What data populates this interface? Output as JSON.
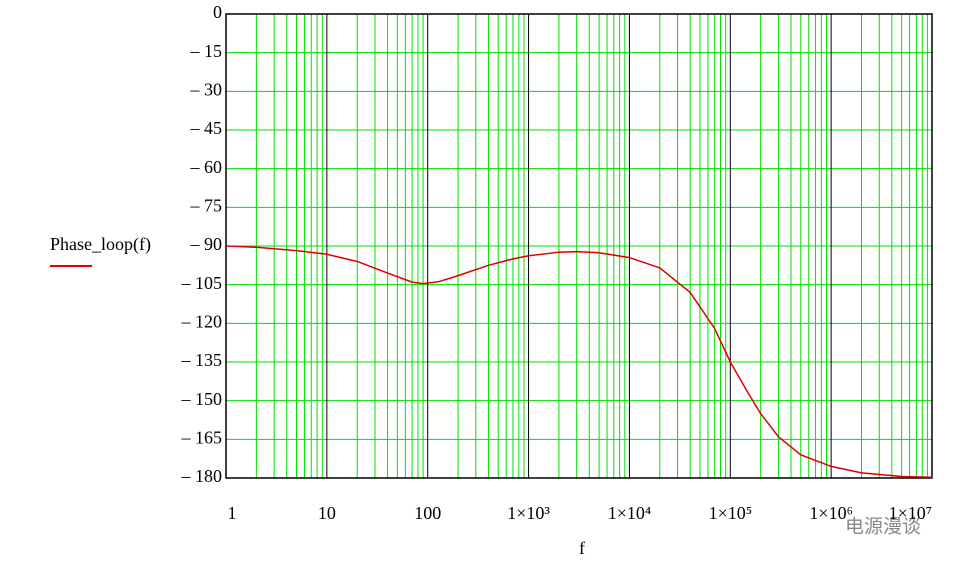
{
  "chart_data": {
    "type": "line",
    "legend_label": "Phase_loop(f)",
    "xlabel": "f",
    "watermark": "电源漫谈",
    "log_x": true,
    "grid": true,
    "x": [
      1,
      2,
      5,
      10,
      20,
      40,
      70,
      90,
      130,
      200,
      400,
      700,
      1000,
      2000,
      3000,
      5000,
      10000,
      20000,
      40000,
      70000,
      100000,
      150000,
      200000,
      300000,
      500000,
      1000000,
      2000000,
      5000000,
      10000000
    ],
    "series": [
      {
        "name": "Phase_loop(f)",
        "color": "#e00000",
        "values": [
          -90,
          -90.5,
          -91.8,
          -93.2,
          -96,
          -100.5,
          -104,
          -104.6,
          -103.8,
          -101.5,
          -97.5,
          -95,
          -93.8,
          -92.4,
          -92.2,
          -92.6,
          -94.5,
          -98.5,
          -108,
          -122,
          -135,
          -147,
          -155,
          -164,
          -171,
          -175.5,
          -178,
          -179.4,
          -179.7
        ]
      }
    ],
    "xlim": [
      1,
      10000000
    ],
    "xticks": [
      1,
      10,
      100,
      {
        "value": 1000,
        "label": "1×10³"
      },
      {
        "value": 10000,
        "label": "1×10⁴"
      },
      {
        "value": 100000,
        "label": "1×10⁵"
      },
      {
        "value": 1000000,
        "label": "1×10⁶"
      },
      {
        "value": 10000000,
        "label": "1×10⁷"
      }
    ],
    "ylim": [
      -180,
      0
    ],
    "yticks": [
      0,
      {
        "value": -15,
        "label": "– 15"
      },
      {
        "value": -30,
        "label": "– 30"
      },
      {
        "value": -45,
        "label": "– 45"
      },
      {
        "value": -60,
        "label": "– 60"
      },
      {
        "value": -75,
        "label": "– 75"
      },
      {
        "value": -90,
        "label": "– 90"
      },
      {
        "value": -105,
        "label": "– 105"
      },
      {
        "value": -120,
        "label": "– 120"
      },
      {
        "value": -135,
        "label": "– 135"
      },
      {
        "value": -150,
        "label": "– 150"
      },
      {
        "value": -165,
        "label": "– 165"
      },
      {
        "value": -180,
        "label": "– 180"
      }
    ]
  }
}
